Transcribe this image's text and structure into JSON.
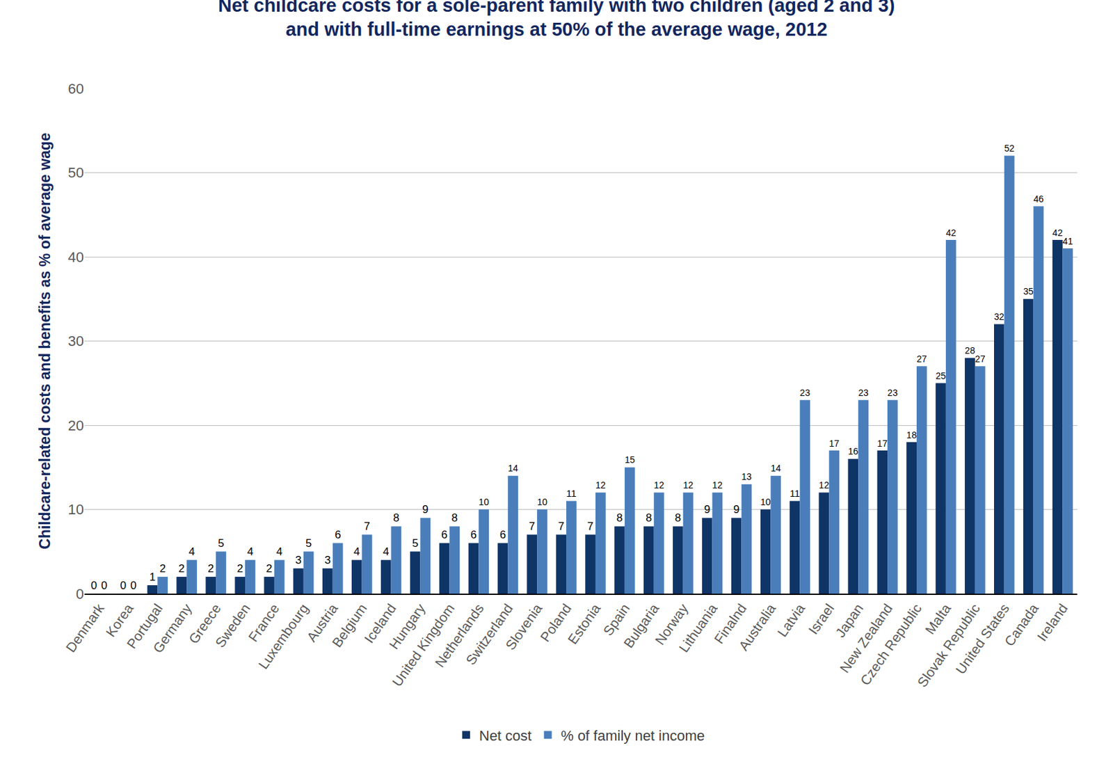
{
  "chart_data": {
    "type": "bar",
    "title": "Net childcare costs for a sole-parent family with two children (aged 2 and 3)\nand with full-time earnings at 50% of the average wage, 2012",
    "y_label": "Childcare-related costs and benefits as % of average wage",
    "categories": [
      "Denmark",
      "Korea",
      "Portugal",
      "Germany",
      "Greece",
      "Sweden",
      "France",
      "Luxembourg",
      "Austria",
      "Belgium",
      "Iceland",
      "Hungary",
      "United Kingdom",
      "Netherlands",
      "Switzerland",
      "Slovenia",
      "Poland",
      "Estonia",
      "Spain",
      "Bulgaria",
      "Norway",
      "Lithuania",
      "Finalnd",
      "Australia",
      "Latvia",
      "Israel",
      "Japan",
      "New Zealand",
      "Czech Republic",
      "Malta",
      "Slovak Republic",
      "United States",
      "Canada",
      "Ireland"
    ],
    "series": [
      {
        "name": "Net cost",
        "color": "#0f3466",
        "values": [
          0,
          0,
          1,
          2,
          2,
          2,
          2,
          3,
          3,
          4,
          4,
          5,
          6,
          6,
          6,
          7,
          7,
          7,
          8,
          8,
          8,
          9,
          9,
          10,
          11,
          12,
          16,
          17,
          18,
          25,
          28,
          32,
          35,
          42
        ]
      },
      {
        "name": "% of family net income",
        "color": "#4a7ebb",
        "values": [
          0,
          0,
          2,
          4,
          5,
          4,
          4,
          5,
          6,
          7,
          8,
          9,
          8,
          10,
          14,
          10,
          11,
          12,
          15,
          12,
          12,
          12,
          13,
          14,
          23,
          17,
          23,
          23,
          27,
          42,
          27,
          52,
          46,
          41
        ]
      }
    ],
    "ylim": [
      0,
      60
    ],
    "yticks": [
      0,
      10,
      20,
      30,
      40,
      50,
      60
    ],
    "grid": true,
    "legend": "bottom",
    "data_labels": true
  }
}
